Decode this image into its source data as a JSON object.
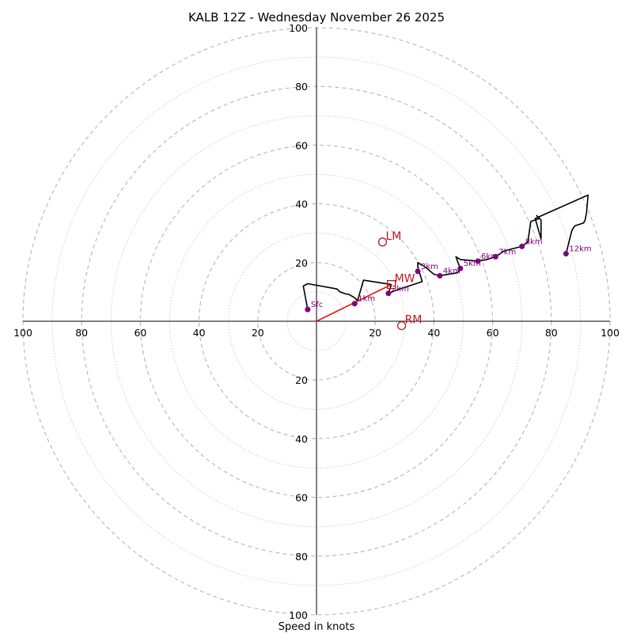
{
  "chart_data": {
    "type": "hodograph",
    "title": "KALB 12Z - Wednesday November 26 2025",
    "xlabel": "Speed in knots",
    "speed_max": 100,
    "ring_major_step": 20,
    "ring_minor_step": 10,
    "tick_values": [
      20,
      40,
      60,
      80,
      100
    ],
    "colors": {
      "trace": "#000000",
      "height_marker": "#800080",
      "storm_motion": "#c0181b",
      "shear_vector": "#e8130f",
      "ring": "#bbbbbb",
      "axis": "#000000"
    },
    "trace": [
      [
        -3,
        4
      ],
      [
        -4.5,
        12
      ],
      [
        -3,
        12.8
      ],
      [
        7,
        11
      ],
      [
        8,
        10
      ],
      [
        10,
        9.3
      ],
      [
        11,
        9.2
      ],
      [
        13,
        8
      ],
      [
        14,
        7
      ],
      [
        16,
        14
      ],
      [
        25.5,
        12.5
      ],
      [
        24.5,
        9.5
      ],
      [
        27,
        10.5
      ],
      [
        33,
        12.5
      ],
      [
        36,
        13.5
      ],
      [
        34.5,
        18.5
      ],
      [
        34.5,
        20
      ],
      [
        37,
        18.5
      ],
      [
        40,
        16
      ],
      [
        42,
        15.5
      ],
      [
        45,
        16
      ],
      [
        48,
        16.5
      ],
      [
        49,
        18
      ],
      [
        48,
        20.5
      ],
      [
        47.5,
        22
      ],
      [
        49,
        21
      ],
      [
        55,
        20.5
      ],
      [
        58,
        21
      ],
      [
        61,
        22
      ],
      [
        64,
        24
      ],
      [
        70,
        25.5
      ],
      [
        72,
        27
      ],
      [
        73,
        34
      ],
      [
        76,
        35
      ],
      [
        75,
        36
      ],
      [
        76.5,
        34.5
      ],
      [
        76.5,
        28
      ],
      [
        74.5,
        35
      ],
      [
        92.5,
        43
      ],
      [
        92,
        37
      ],
      [
        91.5,
        34.5
      ],
      [
        91,
        33.5
      ],
      [
        89.5,
        33
      ],
      [
        88,
        32.5
      ],
      [
        87,
        31
      ],
      [
        86,
        27
      ],
      [
        85,
        23
      ]
    ],
    "height_points": [
      {
        "label": "Sfc",
        "u": -3,
        "v": 4
      },
      {
        "label": "1km",
        "u": 13,
        "v": 6
      },
      {
        "label": "2km",
        "u": 24.5,
        "v": 9.5
      },
      {
        "label": "3km",
        "u": 34.5,
        "v": 17
      },
      {
        "label": "4km",
        "u": 42,
        "v": 15.5
      },
      {
        "label": "5km",
        "u": 49,
        "v": 18
      },
      {
        "label": "6km",
        "u": 55,
        "v": 20.5
      },
      {
        "label": "7km",
        "u": 61,
        "v": 22
      },
      {
        "label": "8km",
        "u": 70,
        "v": 25.5
      },
      {
        "label": "12km",
        "u": 85,
        "v": 23
      }
    ],
    "storm_motion": [
      {
        "label": "LM",
        "u": 22.5,
        "v": 27,
        "marker": "circle"
      },
      {
        "label": "MW",
        "u": 25.5,
        "v": 12.5,
        "marker": "square"
      },
      {
        "label": "RM",
        "u": 29,
        "v": -1.5,
        "marker": "circle"
      }
    ],
    "shear_vector": {
      "from": [
        0,
        0
      ],
      "to": [
        25.5,
        12.5
      ]
    }
  }
}
